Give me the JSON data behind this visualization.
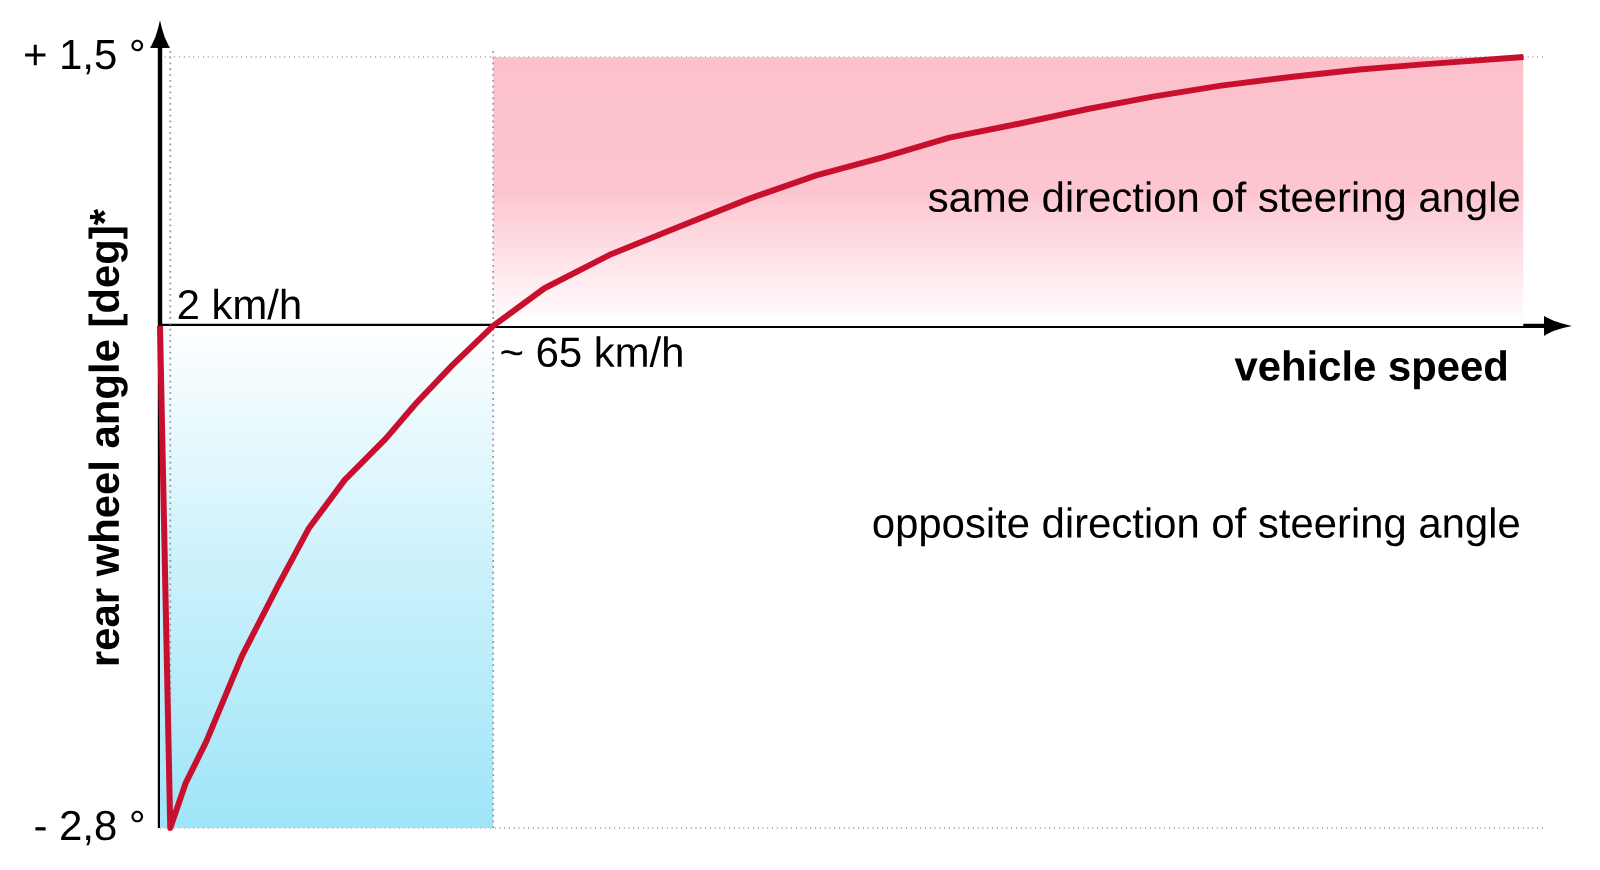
{
  "chart_data": {
    "type": "line",
    "xlabel": "vehicle speed",
    "ylabel": "rear wheel angle [deg]*",
    "x": [
      0,
      2,
      5,
      9,
      16,
      23,
      29,
      36,
      44,
      50,
      57,
      65,
      75,
      88,
      101,
      115,
      128,
      141,
      154,
      168,
      181,
      194,
      207,
      221,
      234,
      247,
      266
    ],
    "series": [
      {
        "color": "#c8102e",
        "values": [
          0,
          -2.8,
          -2.55,
          -2.32,
          -1.84,
          -1.45,
          -1.13,
          -0.86,
          -0.63,
          -0.43,
          -0.22,
          0,
          0.21,
          0.4,
          0.55,
          0.71,
          0.84,
          0.94,
          1.05,
          1.13,
          1.21,
          1.28,
          1.34,
          1.39,
          1.43,
          1.46,
          1.5
        ]
      }
    ],
    "xlim": [
      0,
      270
    ],
    "ylim": [
      -2.8,
      1.55
    ],
    "yticks": [
      {
        "value": 1.5,
        "label": "+ 1,5 °"
      },
      {
        "value": -2.8,
        "label": "- 2,8 °"
      }
    ],
    "tick_labels": "y",
    "grid": "y",
    "ref_lines": [
      {
        "axis": "x",
        "value": 2,
        "label": "2 km/h",
        "line_style": "dotted",
        "color": "#999999"
      },
      {
        "axis": "x",
        "value": 65,
        "label": "~ 65 km/h",
        "line_style": "dotted",
        "color": "#999999"
      }
    ],
    "bands": [
      {
        "axis": "x",
        "from": 0,
        "to": 65,
        "color": "#9fe5f8"
      },
      {
        "axis": "x",
        "from": 65,
        "to": 266,
        "color": "#fcc0cb"
      }
    ],
    "annotations": [
      "same direction of steering angle",
      "opposite direction of steering angle"
    ]
  }
}
